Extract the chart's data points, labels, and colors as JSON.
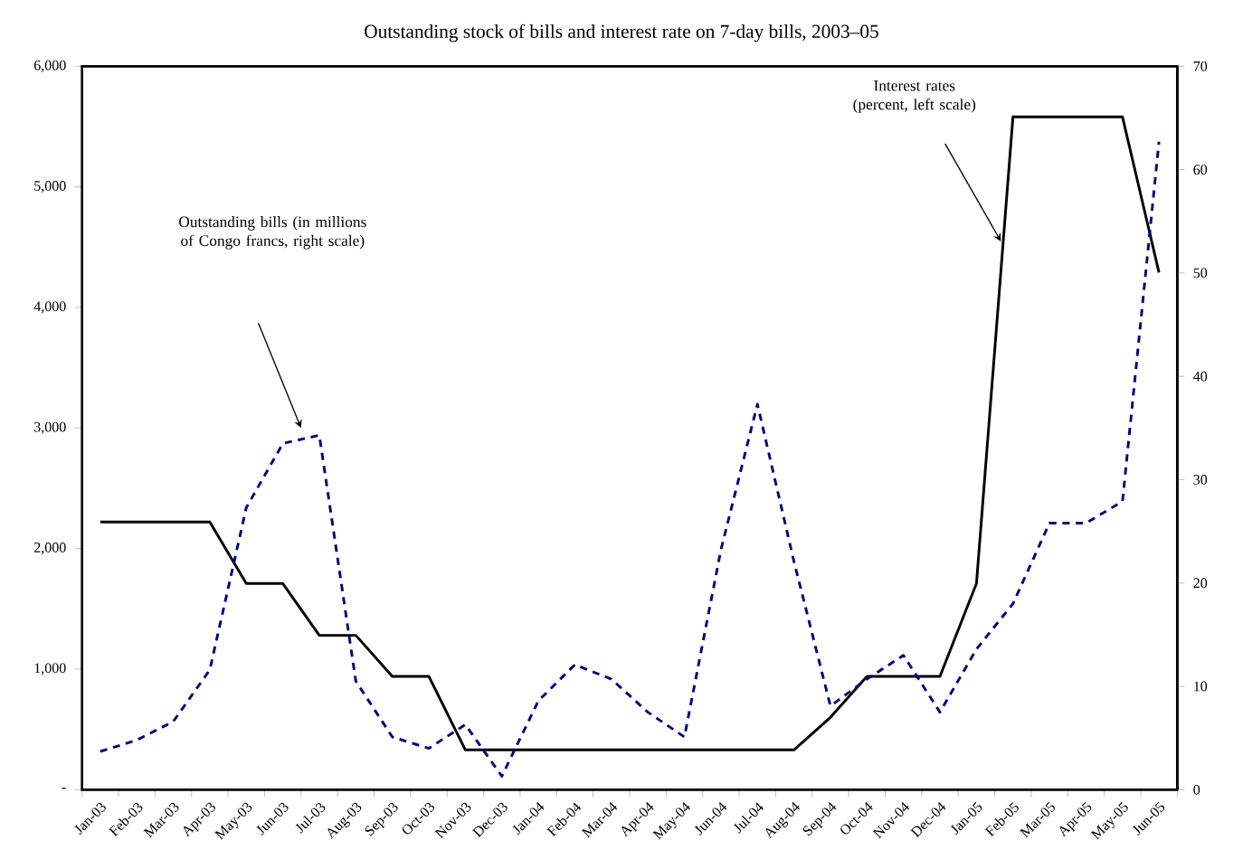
{
  "chart_data": {
    "type": "line",
    "title": "Outstanding stock of bills and interest rate on 7-day bills, 2003–05",
    "categories": [
      "Jan-03",
      "Feb-03",
      "Mar-03",
      "Apr-03",
      "May-03",
      "Jun-03",
      "Jul-03",
      "Aug-03",
      "Sep-03",
      "Oct-03",
      "Nov-03",
      "Dec-03",
      "Jan-04",
      "Feb-04",
      "Mar-04",
      "Apr-04",
      "May-04",
      "Jun-04",
      "Jul-04",
      "Aug-04",
      "Sep-04",
      "Oct-04",
      "Nov-04",
      "Dec-04",
      "Jan-05",
      "Feb-05",
      "Mar-05",
      "Apr-05",
      "May-05",
      "Jun-05"
    ],
    "series": [
      {
        "color": "#000000",
        "line_style": "solid",
        "axis": "y",
        "values": [
          2220,
          2220,
          2220,
          2220,
          1710,
          1710,
          1280,
          1280,
          940,
          940,
          330,
          330,
          330,
          330,
          330,
          330,
          330,
          330,
          330,
          330,
          600,
          940,
          940,
          940,
          1710,
          5580,
          5580,
          5580,
          5580,
          4290
        ]
      },
      {
        "color": "#000080",
        "line_style": "dashed",
        "axis": "y2",
        "values": [
          3.7,
          4.8,
          6.6,
          11.6,
          27.3,
          33.5,
          34.3,
          10.5,
          5.1,
          4.0,
          6.3,
          1.3,
          8.6,
          12.1,
          10.7,
          7.5,
          5.1,
          23.2,
          37.3,
          22.1,
          8.1,
          10.7,
          13.0,
          7.5,
          13.6,
          18.0,
          25.8,
          25.8,
          27.9,
          62.7
        ]
      }
    ],
    "ylim": [
      0,
      6000
    ],
    "yticks": [
      {
        "value": 0,
        "label": "-"
      },
      {
        "value": 1000,
        "label": "1,000"
      },
      {
        "value": 2000,
        "label": "2,000"
      },
      {
        "value": 3000,
        "label": "3,000"
      },
      {
        "value": 4000,
        "label": "4,000"
      },
      {
        "value": 5000,
        "label": "5,000"
      },
      {
        "value": 6000,
        "label": "6,000"
      }
    ],
    "y2lim": [
      0,
      70
    ],
    "y2ticks": [
      0,
      10,
      20,
      30,
      40,
      50,
      60,
      70
    ],
    "annotations": [
      "Outstanding bills (in millions of Congo francs, right scale)",
      "Interest rates (percent, left scale)"
    ],
    "grid": false,
    "marker": "none"
  }
}
